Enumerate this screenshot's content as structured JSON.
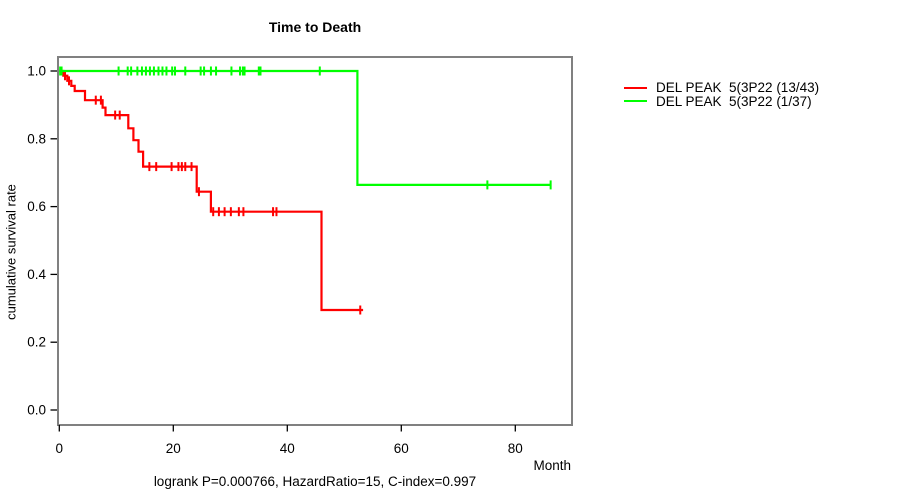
{
  "chart_data": {
    "type": "line",
    "subtype": "kaplan-meier-step",
    "title": "Time to Death",
    "xlabel": "Month",
    "ylabel": "cumulative survival rate",
    "annotation": "logrank P=0.000766, HazardRatio=15, C-index=0.997",
    "xlim": [
      0,
      90
    ],
    "ylim": [
      0,
      1.04
    ],
    "grid": false,
    "legend_position": "right-outside",
    "frame_color": "#808080",
    "x_ticks": {
      "values": [
        0,
        20,
        40,
        60,
        80
      ],
      "labels": [
        "0",
        "20",
        "40",
        "60",
        "80"
      ]
    },
    "y_ticks": {
      "values": [
        1.0,
        0.8,
        0.6,
        0.4,
        0.2,
        0.0
      ],
      "labels": [
        "1.0",
        "0.8",
        "0.6",
        "0.4",
        "0.2",
        "0.0"
      ]
    },
    "series": [
      {
        "name": "DEL PEAK  5(3P22 (13/43)",
        "color": "#ff0000",
        "steps": [
          [
            0,
            1.0
          ],
          [
            0.7,
            0.986
          ],
          [
            1.4,
            0.971
          ],
          [
            2.1,
            0.956
          ],
          [
            2.7,
            0.941
          ],
          [
            4.5,
            0.914
          ],
          [
            7.6,
            0.892
          ],
          [
            8.1,
            0.87
          ],
          [
            12.1,
            0.831
          ],
          [
            13.0,
            0.796
          ],
          [
            13.9,
            0.762
          ],
          [
            14.7,
            0.718
          ],
          [
            24.1,
            0.644
          ],
          [
            26.6,
            0.585
          ],
          [
            46.0,
            0.295
          ]
        ],
        "end_month": 53.3,
        "censors": [
          [
            1.0,
            0.986
          ],
          [
            1.7,
            0.971
          ],
          [
            6.4,
            0.914
          ],
          [
            7.3,
            0.914
          ],
          [
            9.8,
            0.87
          ],
          [
            10.6,
            0.87
          ],
          [
            15.8,
            0.718
          ],
          [
            17.0,
            0.718
          ],
          [
            19.7,
            0.718
          ],
          [
            20.9,
            0.718
          ],
          [
            21.5,
            0.718
          ],
          [
            22.1,
            0.718
          ],
          [
            23.2,
            0.718
          ],
          [
            24.5,
            0.644
          ],
          [
            27.0,
            0.585
          ],
          [
            28.0,
            0.585
          ],
          [
            29.0,
            0.585
          ],
          [
            30.1,
            0.585
          ],
          [
            31.5,
            0.585
          ],
          [
            32.3,
            0.585
          ],
          [
            37.5,
            0.585
          ],
          [
            38.1,
            0.585
          ],
          [
            52.8,
            0.295
          ]
        ]
      },
      {
        "name": "DEL PEAK  5(3P22 (1/37)",
        "color": "#00ff00",
        "steps": [
          [
            0,
            1.0
          ],
          [
            52.3,
            0.664
          ]
        ],
        "end_month": 86.2,
        "censors": [
          [
            0.15,
            1.0
          ],
          [
            0.4,
            1.0
          ],
          [
            10.4,
            1.0
          ],
          [
            12.0,
            1.0
          ],
          [
            12.6,
            1.0
          ],
          [
            13.7,
            1.0
          ],
          [
            14.5,
            1.0
          ],
          [
            15.2,
            1.0
          ],
          [
            15.9,
            1.0
          ],
          [
            16.6,
            1.0
          ],
          [
            17.4,
            1.0
          ],
          [
            18.1,
            1.0
          ],
          [
            18.8,
            1.0
          ],
          [
            19.8,
            1.0
          ],
          [
            20.3,
            1.0
          ],
          [
            22.1,
            1.0
          ],
          [
            24.8,
            1.0
          ],
          [
            25.4,
            1.0
          ],
          [
            26.6,
            1.0
          ],
          [
            27.5,
            1.0
          ],
          [
            30.2,
            1.0
          ],
          [
            31.7,
            1.0
          ],
          [
            32.2,
            1.0
          ],
          [
            32.5,
            1.0
          ],
          [
            35.0,
            1.0
          ],
          [
            35.3,
            1.0
          ],
          [
            45.7,
            1.0
          ],
          [
            75.1,
            0.664
          ],
          [
            86.2,
            0.664
          ]
        ]
      }
    ]
  }
}
